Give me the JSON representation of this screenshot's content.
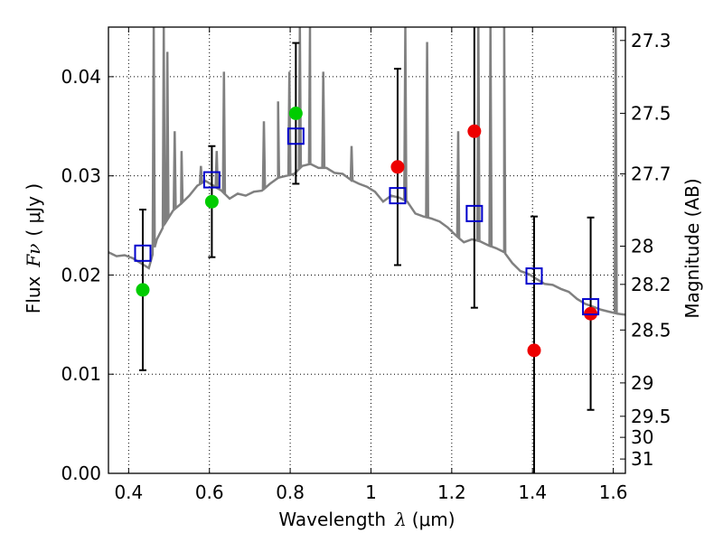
{
  "chart_data": {
    "type": "scatter",
    "xlabel_text": "Wavelength",
    "xlabel_symbol": "λ",
    "xlabel_unit": "(μm)",
    "ylabel_text": "Flux",
    "ylabel_symbol": "Fν",
    "ylabel_unit": "( μJy )",
    "y2label": "Magnitude (AB)",
    "xlim": [
      0.35,
      1.63
    ],
    "ylim": [
      0.0,
      0.045
    ],
    "grid": true,
    "x_ticks": [
      0.4,
      0.6,
      0.8,
      1.0,
      1.2,
      1.4,
      1.6
    ],
    "x_tick_labels": [
      "0.4",
      "0.6",
      "0.8",
      "1",
      "1.2",
      "1.4",
      "1.6"
    ],
    "y_ticks": [
      0.0,
      0.01,
      0.02,
      0.03,
      0.04
    ],
    "y_tick_labels": [
      "0.00",
      "0.01",
      "0.02",
      "0.03",
      "0.04"
    ],
    "mag_ticks": [
      {
        "mag": 27.3,
        "label": "27.3"
      },
      {
        "mag": 27.5,
        "label": "27.5"
      },
      {
        "mag": 27.7,
        "label": "27.7"
      },
      {
        "mag": 28.0,
        "label": "28"
      },
      {
        "mag": 28.2,
        "label": "28.2"
      },
      {
        "mag": 28.5,
        "label": "28.5"
      },
      {
        "mag": 29.0,
        "label": "29"
      },
      {
        "mag": 29.5,
        "label": "29.5"
      },
      {
        "mag": 30.0,
        "label": "30"
      },
      {
        "mag": 31.0,
        "label": "31"
      }
    ],
    "observed": [
      {
        "x": 0.435,
        "y": 0.0185,
        "err": 0.0081,
        "color": "#00cc00"
      },
      {
        "x": 0.606,
        "y": 0.0274,
        "err": 0.0056,
        "color": "#00cc00"
      },
      {
        "x": 0.814,
        "y": 0.0363,
        "err": 0.0071,
        "color": "#00cc00"
      },
      {
        "x": 1.066,
        "y": 0.0309,
        "err": 0.0099,
        "color": "#ee0000"
      },
      {
        "x": 1.256,
        "y": 0.0345,
        "err": 0.0178,
        "color": "#ee0000"
      },
      {
        "x": 1.404,
        "y": 0.0124,
        "err": 0.0135,
        "color": "#ee0000"
      },
      {
        "x": 1.544,
        "y": 0.0161,
        "err": 0.0097,
        "color": "#ee0000"
      }
    ],
    "model_photometry": {
      "color": "#0000cc",
      "points": [
        {
          "x": 0.435,
          "y": 0.0222
        },
        {
          "x": 0.606,
          "y": 0.0296
        },
        {
          "x": 0.814,
          "y": 0.034
        },
        {
          "x": 1.066,
          "y": 0.028
        },
        {
          "x": 1.256,
          "y": 0.0262
        },
        {
          "x": 1.404,
          "y": 0.0199
        },
        {
          "x": 1.544,
          "y": 0.0168
        }
      ]
    },
    "sed_model": {
      "color": "#808080",
      "continuum": [
        [
          0.35,
          0.0223
        ],
        [
          0.37,
          0.0219
        ],
        [
          0.39,
          0.022
        ],
        [
          0.41,
          0.0217
        ],
        [
          0.43,
          0.0212
        ],
        [
          0.45,
          0.0207
        ],
        [
          0.47,
          0.0236
        ],
        [
          0.49,
          0.0252
        ],
        [
          0.51,
          0.0265
        ],
        [
          0.53,
          0.0272
        ],
        [
          0.55,
          0.028
        ],
        [
          0.57,
          0.029
        ],
        [
          0.59,
          0.0295
        ],
        [
          0.61,
          0.029
        ],
        [
          0.63,
          0.0285
        ],
        [
          0.65,
          0.0277
        ],
        [
          0.67,
          0.0282
        ],
        [
          0.69,
          0.028
        ],
        [
          0.71,
          0.0284
        ],
        [
          0.73,
          0.0285
        ],
        [
          0.75,
          0.0292
        ],
        [
          0.77,
          0.0298
        ],
        [
          0.79,
          0.03
        ],
        [
          0.81,
          0.0302
        ],
        [
          0.83,
          0.031
        ],
        [
          0.85,
          0.0312
        ],
        [
          0.87,
          0.0308
        ],
        [
          0.89,
          0.0308
        ],
        [
          0.91,
          0.0303
        ],
        [
          0.93,
          0.0302
        ],
        [
          0.95,
          0.0296
        ],
        [
          0.97,
          0.0292
        ],
        [
          0.99,
          0.0289
        ],
        [
          1.01,
          0.0284
        ],
        [
          1.03,
          0.0274
        ],
        [
          1.05,
          0.028
        ],
        [
          1.07,
          0.0278
        ],
        [
          1.09,
          0.0274
        ],
        [
          1.11,
          0.0262
        ],
        [
          1.13,
          0.0259
        ],
        [
          1.15,
          0.0257
        ],
        [
          1.17,
          0.0254
        ],
        [
          1.19,
          0.0248
        ],
        [
          1.21,
          0.024
        ],
        [
          1.23,
          0.0233
        ],
        [
          1.25,
          0.0236
        ],
        [
          1.27,
          0.0234
        ],
        [
          1.29,
          0.023
        ],
        [
          1.31,
          0.0227
        ],
        [
          1.33,
          0.0223
        ],
        [
          1.35,
          0.0212
        ],
        [
          1.37,
          0.0204
        ],
        [
          1.39,
          0.0201
        ],
        [
          1.41,
          0.0196
        ],
        [
          1.43,
          0.0191
        ],
        [
          1.45,
          0.019
        ],
        [
          1.47,
          0.0186
        ],
        [
          1.49,
          0.0183
        ],
        [
          1.51,
          0.0176
        ],
        [
          1.53,
          0.0171
        ],
        [
          1.55,
          0.0168
        ],
        [
          1.57,
          0.0165
        ],
        [
          1.59,
          0.0163
        ],
        [
          1.61,
          0.0161
        ],
        [
          1.63,
          0.016
        ]
      ],
      "emission_lines": [
        {
          "x": 0.462,
          "peak": 0.045
        },
        {
          "x": 0.487,
          "peak": 0.045
        },
        {
          "x": 0.496,
          "peak": 0.0425
        },
        {
          "x": 0.514,
          "peak": 0.0345
        },
        {
          "x": 0.531,
          "peak": 0.0325
        },
        {
          "x": 0.579,
          "peak": 0.031
        },
        {
          "x": 0.618,
          "peak": 0.0325
        },
        {
          "x": 0.636,
          "peak": 0.0405
        },
        {
          "x": 0.735,
          "peak": 0.0355
        },
        {
          "x": 0.77,
          "peak": 0.0375
        },
        {
          "x": 0.798,
          "peak": 0.0405
        },
        {
          "x": 0.824,
          "peak": 0.045
        },
        {
          "x": 0.849,
          "peak": 0.045
        },
        {
          "x": 0.882,
          "peak": 0.0405
        },
        {
          "x": 0.952,
          "peak": 0.033
        },
        {
          "x": 1.085,
          "peak": 0.0455
        },
        {
          "x": 1.139,
          "peak": 0.0435
        },
        {
          "x": 1.216,
          "peak": 0.0345
        },
        {
          "x": 1.266,
          "peak": 0.0455
        },
        {
          "x": 1.296,
          "peak": 0.045
        },
        {
          "x": 1.33,
          "peak": 0.045
        },
        {
          "x": 1.606,
          "peak": 0.045
        }
      ]
    }
  }
}
